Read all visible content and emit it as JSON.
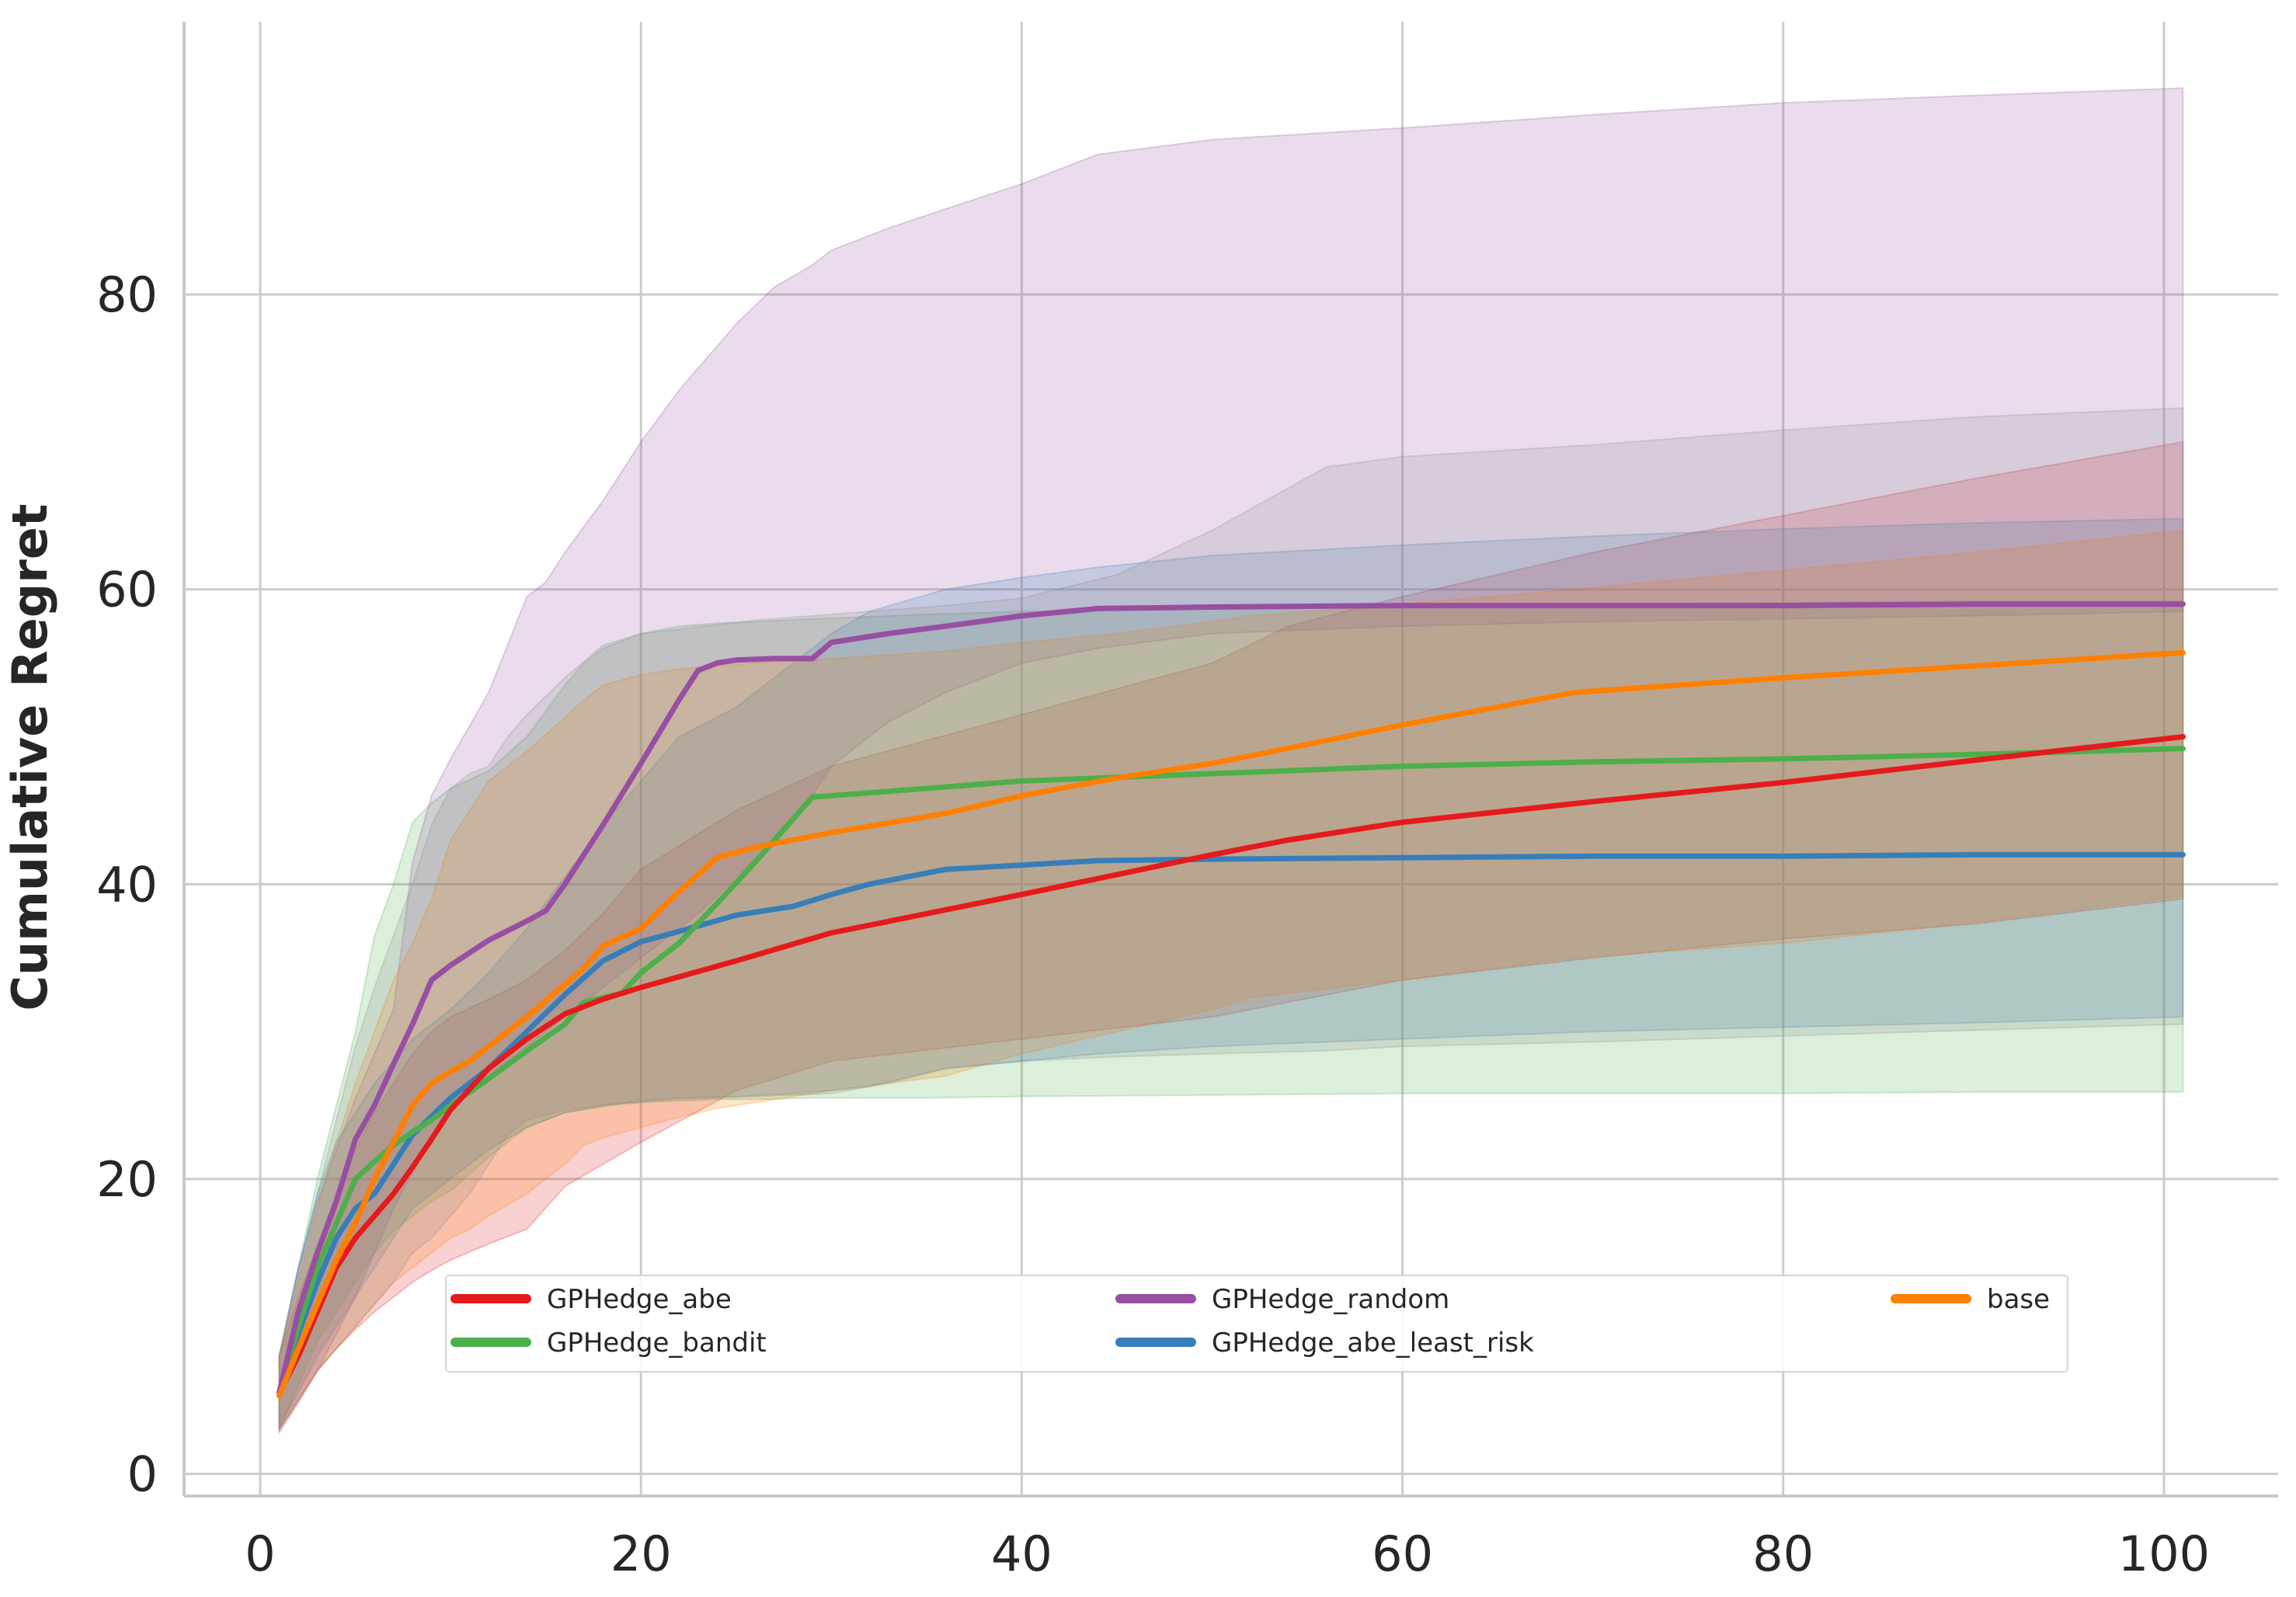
{
  "chart_data": {
    "type": "line",
    "title": "",
    "xlabel": "",
    "ylabel": "Cumulative Regret",
    "xlim": [
      -4,
      106
    ],
    "ylim": [
      -1.5,
      98.5
    ],
    "xticks": [
      0,
      20,
      40,
      60,
      80,
      100
    ],
    "yticks": [
      0,
      20,
      40,
      60,
      80
    ],
    "grid": true,
    "legend": {
      "position": "lower center",
      "columns": 3
    },
    "series": [
      {
        "name": "GPHedge_abe",
        "color": "#e41a1c",
        "x": [
          1,
          2,
          3,
          4,
          5,
          6,
          7,
          8,
          9,
          10,
          12,
          14,
          16,
          18,
          20,
          25,
          30,
          40,
          50,
          54,
          60,
          70,
          80,
          90,
          101
        ],
        "y": [
          5.5,
          8,
          11,
          14,
          16,
          17.5,
          19,
          20.8,
          22.7,
          24.7,
          27.5,
          29.5,
          31.2,
          32.2,
          33,
          34.8,
          36.7,
          39.3,
          42,
          43,
          44.2,
          45.6,
          46.9,
          48.4,
          50
        ],
        "lower": [
          3,
          5,
          7,
          8.5,
          9.8,
          11,
          12,
          13,
          13.8,
          14.5,
          15.6,
          16.6,
          19.5,
          21,
          22.5,
          26,
          28,
          29.5,
          31,
          32,
          33.5,
          35,
          36.3,
          37.3,
          39
        ],
        "upper": [
          8,
          12,
          15.5,
          19,
          22,
          24.5,
          26.5,
          28.5,
          30,
          31,
          32.2,
          33.5,
          35.5,
          38,
          41,
          45,
          48,
          51.5,
          55,
          57.5,
          59.5,
          62.5,
          65,
          67.5,
          70
        ]
      },
      {
        "name": "GPHedge_bandit",
        "color": "#4daf4a",
        "x": [
          1,
          2,
          3,
          4,
          5,
          6,
          7,
          8,
          9,
          10,
          12,
          14,
          16,
          17,
          18,
          19,
          20,
          22,
          24,
          26,
          29,
          35,
          40,
          50,
          60,
          70,
          80,
          90,
          101
        ],
        "y": [
          5.5,
          10,
          14,
          17,
          20,
          21.2,
          22.3,
          23.2,
          24,
          25,
          26.8,
          28.7,
          30.5,
          32,
          32.3,
          32.6,
          34,
          36,
          38.7,
          41.5,
          45.9,
          46.5,
          47,
          47.5,
          48,
          48.3,
          48.5,
          48.8,
          49.2
        ],
        "lower": [
          3,
          6,
          9,
          11,
          13,
          15,
          16.5,
          17.5,
          18.5,
          19.2,
          21.5,
          23.5,
          24.5,
          24.7,
          24.9,
          25.1,
          25.2,
          25.3,
          25.4,
          25.4,
          25.5,
          25.5,
          25.6,
          25.7,
          25.8,
          25.8,
          25.8,
          25.9,
          25.9
        ],
        "upper": [
          8,
          14,
          20,
          25,
          30,
          36.5,
          40,
          44.2,
          45.5,
          46.5,
          47.7,
          50,
          53.5,
          55,
          56,
          56.5,
          57,
          57.5,
          57.7,
          57.8,
          58,
          58.3,
          58.5,
          58.7,
          58.9,
          59,
          59.1,
          59.2,
          59.2
        ]
      },
      {
        "name": "GPHedge_random",
        "color": "#984ea3",
        "x": [
          1,
          2,
          3,
          4,
          5,
          6,
          7,
          8,
          9,
          10,
          12,
          14,
          15,
          16,
          18,
          20,
          22,
          23,
          24,
          25,
          27,
          29,
          30,
          33,
          36,
          40,
          44,
          50,
          60,
          70,
          80,
          90,
          101
        ],
        "y": [
          5.5,
          11,
          15,
          18.5,
          22.7,
          25,
          27.8,
          30.5,
          33.5,
          34.5,
          36.2,
          37.5,
          38.2,
          40,
          44,
          48.2,
          52.5,
          54.5,
          55,
          55.2,
          55.3,
          55.3,
          56.4,
          57,
          57.5,
          58.2,
          58.7,
          58.8,
          58.9,
          58.9,
          58.9,
          59,
          59
        ],
        "lower": [
          2.8,
          4.8,
          7,
          9.5,
          12,
          15,
          18,
          20.5,
          23,
          24.8,
          27,
          29,
          30,
          31,
          33,
          35,
          37,
          38,
          39.2,
          40.5,
          43,
          46,
          48,
          51,
          53,
          55,
          56,
          57,
          57.5,
          57.8,
          58,
          58.2,
          58.5
        ],
        "upper": [
          8,
          14,
          18.5,
          22,
          25.5,
          28.5,
          31.5,
          41.5,
          46,
          48.5,
          53,
          59.5,
          60.5,
          62.5,
          66,
          70,
          73.5,
          75,
          76.5,
          78,
          80.5,
          82,
          83,
          84.5,
          85.8,
          87.5,
          89.5,
          90.5,
          91.3,
          92.2,
          93,
          93.5,
          94
        ]
      },
      {
        "name": "GPHedge_abe_least_risk",
        "color": "#377eb8",
        "x": [
          1,
          2,
          3,
          4,
          5,
          6,
          7,
          8,
          10,
          12,
          14,
          16,
          18,
          20,
          22,
          25,
          28,
          30,
          32,
          36,
          40,
          44,
          50,
          60,
          70,
          80,
          90,
          101
        ],
        "y": [
          5.5,
          9.5,
          13,
          16,
          18,
          19,
          21,
          23,
          25.5,
          27.5,
          30,
          32.5,
          34.8,
          36.1,
          36.8,
          37.9,
          38.5,
          39.3,
          40,
          41,
          41.3,
          41.6,
          41.7,
          41.8,
          41.9,
          41.9,
          42,
          42
        ],
        "lower": [
          3.2,
          5.5,
          8,
          10,
          12,
          14,
          16,
          18,
          20,
          22,
          23.5,
          24.5,
          25,
          25.3,
          25.5,
          25.6,
          25.8,
          26,
          26.3,
          27.5,
          28,
          28.5,
          29,
          29.5,
          30,
          30.3,
          30.6,
          31
        ],
        "upper": [
          8,
          14,
          19,
          22.5,
          24.5,
          26.5,
          28,
          29.5,
          31.5,
          34,
          37,
          40.5,
          44,
          47,
          50,
          52,
          55,
          57,
          58.5,
          60,
          60.8,
          61.5,
          62.3,
          63,
          63.6,
          64.1,
          64.5,
          64.8
        ]
      },
      {
        "name": "base",
        "color": "#ff7f00",
        "x": [
          1,
          2,
          3,
          4,
          5,
          6,
          7,
          8,
          9,
          10,
          11,
          12,
          14,
          16,
          17,
          18,
          20,
          22,
          24,
          26,
          30,
          36,
          40,
          45,
          50,
          52,
          60,
          69,
          80,
          90,
          101
        ],
        "y": [
          5.3,
          8.5,
          11.5,
          14.5,
          17,
          20,
          22.5,
          25,
          26.5,
          27.3,
          28,
          29,
          31,
          33.2,
          34.3,
          35.8,
          37,
          39.5,
          41.8,
          42.5,
          43.5,
          44.8,
          46,
          47.2,
          48.2,
          48.7,
          50.8,
          53,
          54,
          54.8,
          55.7
        ],
        "lower": [
          3,
          5,
          7,
          8.5,
          10,
          11.5,
          13,
          14,
          15,
          16,
          16.6,
          17.5,
          19,
          21,
          22.3,
          22.8,
          23.5,
          24.2,
          24.8,
          25.2,
          26,
          27,
          28.5,
          30,
          31.5,
          32.3,
          33.5,
          35,
          36,
          37.4,
          39.2
        ],
        "upper": [
          8,
          13,
          18,
          22.5,
          26.5,
          30,
          33.5,
          36,
          39,
          43,
          45,
          47,
          49,
          51.3,
          52.5,
          53.5,
          54.2,
          54.6,
          54.8,
          55,
          55.3,
          55.8,
          56.4,
          57,
          57.8,
          58.2,
          59,
          60,
          61.3,
          62.5,
          64
        ]
      }
    ],
    "extra_bands": [
      {
        "color": "#8c8c8c",
        "x": [
          1,
          2,
          3,
          4,
          5,
          6,
          7,
          8,
          9,
          10,
          11,
          12,
          13,
          14,
          16,
          18,
          20,
          22,
          24,
          26,
          28,
          30,
          33,
          36,
          40,
          45,
          50,
          56,
          60,
          70,
          80,
          90,
          101
        ],
        "lower": [
          3,
          5,
          7,
          8.5,
          10,
          11.5,
          13,
          15,
          16,
          17.5,
          19,
          21,
          23,
          24,
          24.7,
          25,
          25.2,
          25.4,
          25.5,
          25.6,
          25.7,
          25.8,
          26.5,
          27.5,
          28,
          28.3,
          28.5,
          28.7,
          29,
          29.3,
          29.7,
          30.1,
          30.5
        ],
        "upper": [
          8,
          13.5,
          19,
          24,
          29,
          33,
          36.5,
          40,
          44,
          46.5,
          47.5,
          48,
          50,
          51.5,
          54,
          56.2,
          57,
          57.3,
          57.6,
          57.9,
          58.1,
          58.3,
          58.6,
          58.9,
          59.4,
          61,
          64,
          68.3,
          69,
          69.8,
          70.8,
          71.7,
          72.3
        ]
      }
    ]
  }
}
